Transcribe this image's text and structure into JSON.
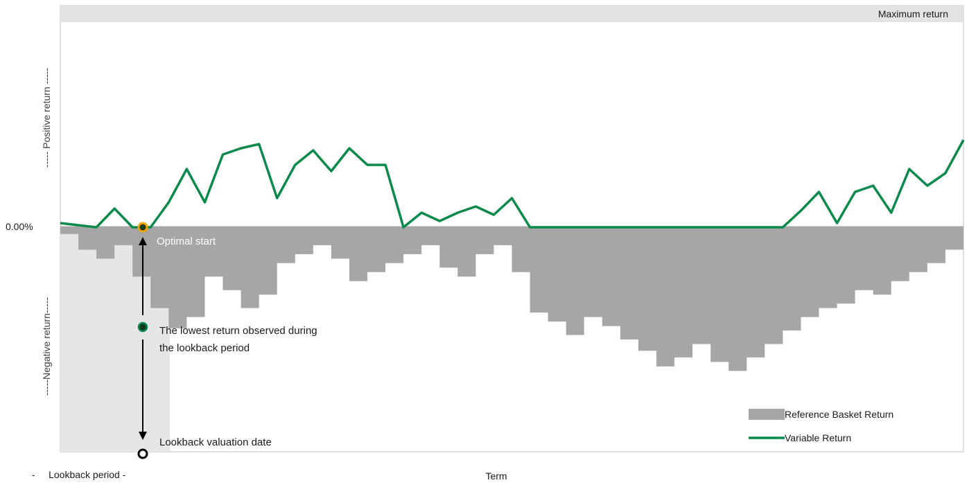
{
  "chart_data": {
    "type": "area",
    "title": "",
    "xlabel": "Term",
    "y_axis": {
      "positive_label": "----- Positive return -----",
      "negative_label": "-----Negative return-----",
      "zero_tick": "0.00%"
    },
    "cap_label": "Maximum return",
    "lookback_label": "-     Lookback period -",
    "annotations": {
      "optimal_start": "Optimal start",
      "lowest_return_line1": "The lowest return observed during",
      "lowest_return_line2": "the lookback period",
      "lookback_valuation": "Lookback valuation date"
    },
    "ylim": [
      -1.0,
      1.0
    ],
    "grid": false,
    "legend_position": "bottom-right",
    "series": [
      {
        "name": "Reference Basket Return",
        "color": "#a6a6a6",
        "x": [
          0,
          2,
          4,
          6,
          8,
          10,
          12,
          14,
          16,
          18,
          20,
          22,
          24,
          26,
          28,
          30,
          32,
          34,
          36,
          38,
          40,
          42,
          44,
          46,
          48,
          50,
          52,
          54,
          56,
          58,
          60,
          62,
          64,
          66,
          68,
          70,
          72,
          74,
          76,
          78,
          80,
          82,
          84,
          86,
          88,
          90,
          92,
          94,
          96,
          98,
          100
        ],
        "values": [
          -0.03,
          -0.1,
          -0.14,
          -0.08,
          -0.22,
          -0.36,
          -0.45,
          -0.4,
          -0.22,
          -0.28,
          -0.36,
          -0.3,
          -0.16,
          -0.12,
          -0.08,
          -0.14,
          -0.24,
          -0.2,
          -0.16,
          -0.12,
          -0.08,
          -0.18,
          -0.22,
          -0.12,
          -0.08,
          -0.2,
          -0.38,
          -0.42,
          -0.48,
          -0.4,
          -0.44,
          -0.5,
          -0.55,
          -0.62,
          -0.58,
          -0.52,
          -0.6,
          -0.64,
          -0.58,
          -0.52,
          -0.46,
          -0.4,
          -0.36,
          -0.34,
          -0.28,
          -0.3,
          -0.24,
          -0.2,
          -0.16,
          -0.1,
          -0.1
        ]
      },
      {
        "name": "Variable Return",
        "color": "#0a8a4a",
        "x": [
          0,
          2,
          4,
          6,
          8,
          10,
          12,
          14,
          16,
          18,
          20,
          22,
          24,
          26,
          28,
          30,
          32,
          34,
          36,
          38,
          40,
          42,
          44,
          46,
          48,
          50,
          52,
          54,
          56,
          58,
          60,
          62,
          64,
          66,
          68,
          70,
          72,
          74,
          76,
          78,
          80,
          82,
          84,
          86,
          88,
          90,
          92,
          94,
          96,
          98,
          100
        ],
        "values": [
          0.02,
          0.01,
          0.0,
          0.09,
          0.0,
          0.0,
          0.12,
          0.28,
          0.12,
          0.35,
          0.38,
          0.4,
          0.14,
          0.3,
          0.37,
          0.27,
          0.38,
          0.3,
          0.3,
          0.0,
          0.07,
          0.03,
          0.07,
          0.1,
          0.06,
          0.14,
          0.0,
          0.0,
          0.0,
          0.0,
          0.0,
          0.0,
          0.0,
          0.0,
          0.0,
          0.0,
          0.0,
          0.0,
          0.0,
          0.0,
          0.0,
          0.08,
          0.17,
          0.02,
          0.17,
          0.2,
          0.07,
          0.28,
          0.2,
          0.26,
          0.42
        ]
      }
    ]
  }
}
